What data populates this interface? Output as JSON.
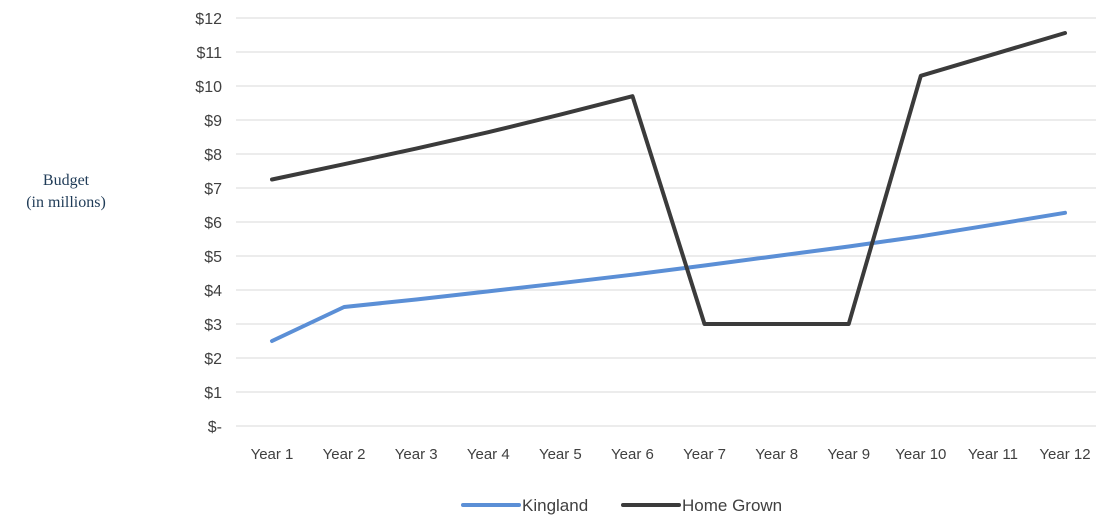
{
  "chart_data": {
    "type": "line",
    "ylabel_line1": "Budget",
    "ylabel_line2": "(in millions)",
    "xlabel": "",
    "categories": [
      "Year 1",
      "Year 2",
      "Year 3",
      "Year 4",
      "Year 5",
      "Year 6",
      "Year 7",
      "Year 8",
      "Year 9",
      "Year 10",
      "Year 11",
      "Year 12"
    ],
    "ylim": [
      0,
      12
    ],
    "ytick_labels": [
      "$-",
      "$1",
      "$2",
      "$3",
      "$4",
      "$5",
      "$6",
      "$7",
      "$8",
      "$9",
      "$10",
      "$11",
      "$12"
    ],
    "grid": true,
    "legend_position": "bottom",
    "series": [
      {
        "name": "Kingland",
        "color": "#5b8fd6",
        "values": [
          2.5,
          3.5,
          3.72,
          3.96,
          4.2,
          4.45,
          4.72,
          5.0,
          5.28,
          5.58,
          5.92,
          6.27
        ]
      },
      {
        "name": "Home Grown",
        "color": "#3b3b3b",
        "values": [
          7.25,
          7.7,
          8.16,
          8.64,
          9.16,
          9.7,
          3.0,
          3.0,
          3.0,
          10.3,
          10.93,
          11.56
        ]
      }
    ]
  }
}
